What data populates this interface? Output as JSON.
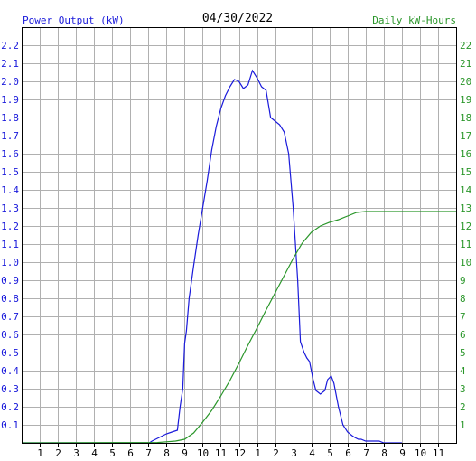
{
  "chart_data": {
    "type": "line",
    "title": "04/30/2022",
    "left_axis_title": "Power Output (kW)",
    "right_axis_title": "Daily kW-Hours",
    "colors": {
      "power": "#1a1adb",
      "energy": "#2a962a",
      "title": "#000000",
      "grid": "#b0b0b0",
      "axis": "#000000",
      "background": "#ffffff"
    },
    "grid": true,
    "x_range_hours": [
      0,
      24
    ],
    "x_tick_labels": [
      "1",
      "2",
      "3",
      "4",
      "5",
      "6",
      "7",
      "8",
      "9",
      "10",
      "11",
      "12",
      "1",
      "2",
      "3",
      "4",
      "5",
      "6",
      "7",
      "8",
      "9",
      "10",
      "11"
    ],
    "left_ylim": [
      0,
      2.3
    ],
    "left_tick_labels": [
      "0.1",
      "0.2",
      "0.3",
      "0.4",
      "0.5",
      "0.6",
      "0.7",
      "0.8",
      "0.9",
      "1.0",
      "1.1",
      "1.2",
      "1.3",
      "1.4",
      "1.5",
      "1.6",
      "1.7",
      "1.8",
      "1.9",
      "2.0",
      "2.1",
      "2.2"
    ],
    "right_ylim": [
      0,
      23
    ],
    "right_tick_labels": [
      "1",
      "2",
      "3",
      "4",
      "5",
      "6",
      "7",
      "8",
      "9",
      "10",
      "11",
      "12",
      "13",
      "14",
      "15",
      "16",
      "17",
      "18",
      "19",
      "20",
      "21",
      "22"
    ],
    "series": [
      {
        "axis": "left",
        "x": [
          0,
          7.05,
          7.2,
          7.4,
          7.6,
          7.8,
          8.0,
          8.3,
          8.6,
          8.75,
          8.9,
          9.0,
          9.1,
          9.25,
          9.5,
          9.75,
          10.0,
          10.25,
          10.5,
          10.75,
          11.0,
          11.25,
          11.5,
          11.75,
          12.0,
          12.25,
          12.5,
          12.75,
          13.0,
          13.25,
          13.5,
          13.75,
          14.0,
          14.25,
          14.5,
          14.75,
          15.0,
          15.25,
          15.4,
          15.6,
          15.75,
          15.9,
          16.0,
          16.1,
          16.25,
          16.5,
          16.75,
          16.9,
          17.1,
          17.25,
          17.5,
          17.75,
          18.0,
          18.25,
          18.4,
          18.6,
          18.75,
          19.0,
          19.25,
          19.5,
          19.75,
          20.0,
          20.25,
          20.5,
          21.0
        ],
        "y": [
          0,
          0,
          0.01,
          0.02,
          0.03,
          0.04,
          0.05,
          0.06,
          0.07,
          0.2,
          0.3,
          0.55,
          0.62,
          0.8,
          0.98,
          1.15,
          1.3,
          1.45,
          1.62,
          1.75,
          1.85,
          1.92,
          1.97,
          2.01,
          2.0,
          1.96,
          1.98,
          2.06,
          2.02,
          1.97,
          1.95,
          1.8,
          1.78,
          1.76,
          1.72,
          1.6,
          1.3,
          0.9,
          0.56,
          0.5,
          0.47,
          0.45,
          0.4,
          0.35,
          0.29,
          0.27,
          0.29,
          0.35,
          0.37,
          0.33,
          0.2,
          0.1,
          0.06,
          0.04,
          0.03,
          0.02,
          0.02,
          0.01,
          0.01,
          0.01,
          0.01,
          0,
          0,
          0,
          0
        ]
      },
      {
        "axis": "right",
        "x": [
          0,
          7.5,
          8.0,
          8.5,
          9.0,
          9.5,
          10.0,
          10.5,
          11.0,
          11.5,
          12.0,
          12.5,
          13.0,
          13.5,
          14.0,
          14.5,
          15.0,
          15.5,
          16.0,
          16.5,
          17.0,
          17.5,
          18.0,
          18.5,
          19.0,
          20.0,
          21.0,
          22.0,
          23.0,
          24.0
        ],
        "y": [
          0,
          0.02,
          0.06,
          0.1,
          0.2,
          0.55,
          1.15,
          1.8,
          2.6,
          3.45,
          4.4,
          5.4,
          6.35,
          7.35,
          8.3,
          9.25,
          10.2,
          11.05,
          11.65,
          12.0,
          12.2,
          12.35,
          12.55,
          12.75,
          12.8,
          12.8,
          12.8,
          12.8,
          12.8,
          12.8
        ]
      }
    ]
  }
}
